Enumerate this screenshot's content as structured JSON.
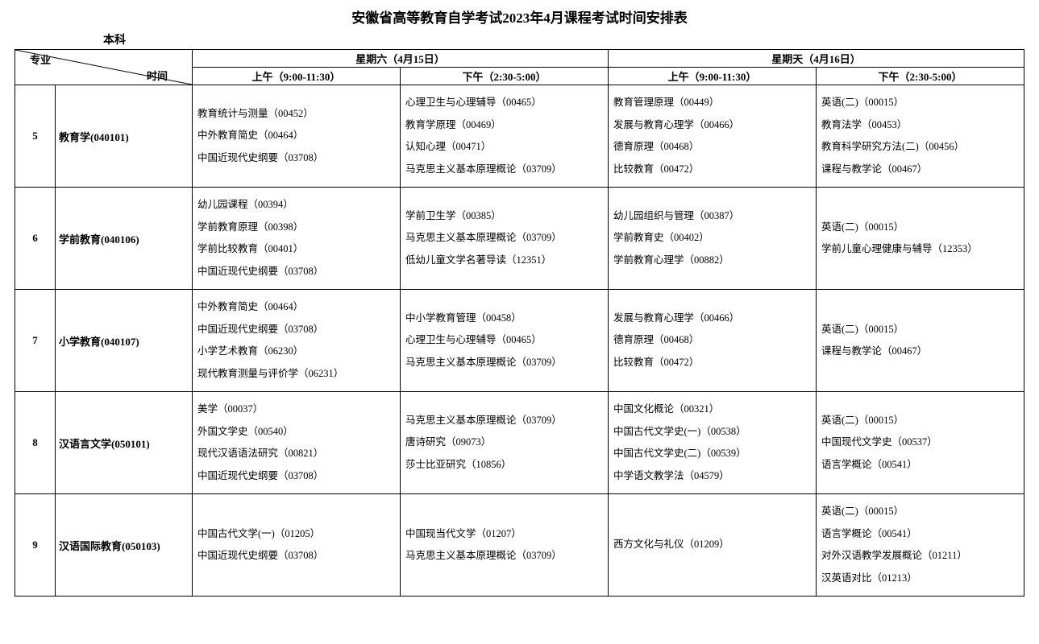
{
  "title": "安徽省高等教育自学考试2023年4月课程考试时间安排表",
  "subtitle": "本科",
  "header": {
    "diag_a": "专业",
    "diag_b": "时间",
    "sat": "星期六（4月15日）",
    "sun": "星期天（4月16日）",
    "am": "上午（9:00-11:30）",
    "pm": "下午（2:30-5:00）"
  },
  "rows": [
    {
      "n": "5",
      "major": "教育学(040101)",
      "sat_am": "教育统计与测量（00452）\n中外教育简史（00464）\n中国近现代史纲要（03708）",
      "sat_pm": "心理卫生与心理辅导（00465）\n教育学原理（00469）\n认知心理（00471）\n马克思主义基本原理概论（03709）",
      "sun_am": "教育管理原理（00449）\n发展与教育心理学（00466）\n德育原理（00468）\n比较教育（00472）",
      "sun_pm": "英语(二)（00015）\n教育法学（00453）\n教育科学研究方法(二)（00456）\n课程与教学论（00467）"
    },
    {
      "n": "6",
      "major": "学前教育(040106)",
      "sat_am": "幼儿园课程（00394）\n学前教育原理（00398）\n学前比较教育（00401）\n中国近现代史纲要（03708）",
      "sat_pm": "学前卫生学（00385）\n马克思主义基本原理概论（03709）\n低幼儿童文学名著导读（12351）",
      "sun_am": "幼儿园组织与管理（00387）\n学前教育史（00402）\n学前教育心理学（00882）",
      "sun_pm": "英语(二)（00015）\n学前儿童心理健康与辅导（12353）"
    },
    {
      "n": "7",
      "major": "小学教育(040107)",
      "sat_am": "中外教育简史（00464）\n中国近现代史纲要（03708）\n小学艺术教育（06230）\n现代教育测量与评价学（06231）",
      "sat_pm": "中小学教育管理（00458）\n心理卫生与心理辅导（00465）\n马克思主义基本原理概论（03709）",
      "sun_am": "发展与教育心理学（00466）\n德育原理（00468）\n比较教育（00472）",
      "sun_pm": "英语(二)（00015）\n课程与教学论（00467）"
    },
    {
      "n": "8",
      "major": "汉语言文学(050101)",
      "sat_am": "美学（00037）\n外国文学史（00540）\n现代汉语语法研究（00821）\n中国近现代史纲要（03708）",
      "sat_pm": "马克思主义基本原理概论（03709）\n唐诗研究（09073）\n莎士比亚研究（10856）",
      "sun_am": "中国文化概论（00321）\n中国古代文学史(一)（00538）\n中国古代文学史(二)（00539）\n中学语文教学法（04579）",
      "sun_pm": "英语(二)（00015）\n中国现代文学史（00537）\n语言学概论（00541）"
    },
    {
      "n": "9",
      "major": "汉语国际教育(050103)",
      "sat_am": "中国古代文学(一)（01205）\n中国近现代史纲要（03708）",
      "sat_pm": "中国现当代文学（01207）\n马克思主义基本原理概论（03709）",
      "sun_am": "西方文化与礼仪（01209）",
      "sun_pm": "英语(二)（00015）\n语言学概论（00541）\n对外汉语教学发展概论（01211）\n汉英语对比（01213）"
    }
  ]
}
